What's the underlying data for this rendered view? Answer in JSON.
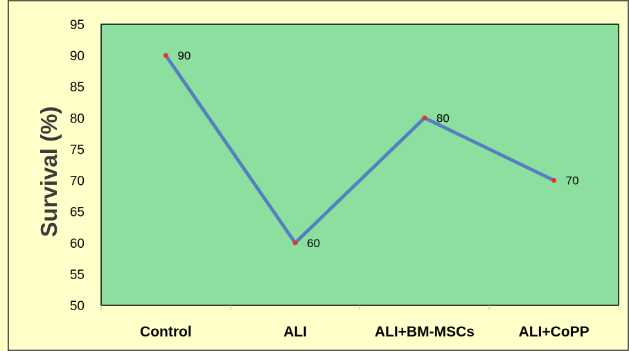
{
  "chart_data": {
    "type": "line",
    "categories": [
      "Control",
      "ALI",
      "ALI+BM-MSCs",
      "ALI+CoPP"
    ],
    "series": [
      {
        "values": [
          90,
          60,
          80,
          70
        ]
      }
    ],
    "data_labels": [
      "90",
      "60",
      "80",
      "70"
    ],
    "ylabel": "Survival  (%)",
    "xlabel": "",
    "title": "",
    "ylim": [
      50,
      95
    ],
    "yticks": [
      50,
      55,
      60,
      65,
      70,
      75,
      80,
      85,
      90,
      95
    ],
    "grid": false,
    "legend": "none",
    "colors": {
      "plot_background": "#8ddf9f",
      "page_background": "#ffffc9",
      "line": "#5580c0",
      "marker": "#e83030",
      "axis": "#000000"
    }
  }
}
